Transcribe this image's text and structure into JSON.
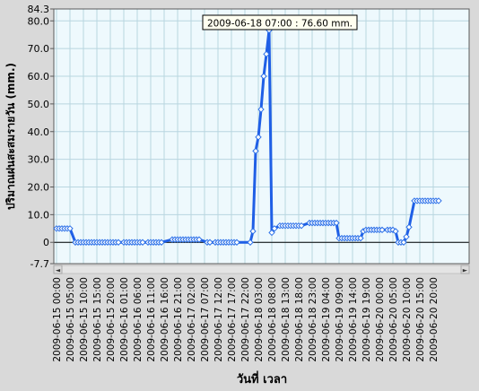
{
  "colors": {
    "background": "#d9d9d9",
    "plot_background": "#eef9fd",
    "grid": "#b8d6e0",
    "line": "#1f5fe6",
    "marker_fill": "#ffffff",
    "marker_stroke": "#2a6fe8",
    "zero_line": "#000000",
    "tooltip_bg": "#fffff0",
    "scrollbar": "#e4e4e4"
  },
  "tooltip": {
    "text": "2009-06-18 07:00 : 76.60 mm."
  },
  "scrollbar": {
    "left_arrow": "◄",
    "right_arrow": "►"
  },
  "chart_data": {
    "type": "line",
    "title": "",
    "xlabel": "วันที่ เวลา",
    "ylabel": "ปริมาณฝนสะสมรายวัน  (mm.)",
    "ylim": [
      -7.7,
      84.3
    ],
    "yticks": [
      -7.7,
      0,
      10.0,
      20.0,
      30.0,
      40.0,
      50.0,
      60.0,
      70.0,
      80.0,
      84.3
    ],
    "ytick_labels": [
      "-7.7",
      "0",
      "10.0",
      "20.0",
      "30.0",
      "40.0",
      "50.0",
      "60.0",
      "70.0",
      "80.0",
      "84.3"
    ],
    "grid": true,
    "x_range": [
      "2009-06-15 00:00",
      "2009-06-20 22:00"
    ],
    "xtick_labels": [
      "2009-06-15 00:00",
      "2009-06-15 05:00",
      "2009-06-15 10:00",
      "2009-06-15 15:00",
      "2009-06-15 20:00",
      "2009-06-16 01:00",
      "2009-06-16 06:00",
      "2009-06-16 11:00",
      "2009-06-16 16:00",
      "2009-06-16 21:00",
      "2009-06-17 02:00",
      "2009-06-17 07:00",
      "2009-06-17 12:00",
      "2009-06-17 17:00",
      "2009-06-17 22:00",
      "2009-06-18 03:00",
      "2009-06-18 08:00",
      "2009-06-18 13:00",
      "2009-06-18 18:00",
      "2009-06-18 23:00",
      "2009-06-19 04:00",
      "2009-06-19 09:00",
      "2009-06-19 14:00",
      "2009-06-19 19:00",
      "2009-06-20 00:00",
      "2009-06-20 05:00",
      "2009-06-20 10:00",
      "2009-06-20 15:00",
      "2009-06-20 20:00"
    ],
    "series": [
      {
        "name": "",
        "points": [
          [
            "2009-06-15 00:00",
            5.0
          ],
          [
            "2009-06-15 01:00",
            5.0
          ],
          [
            "2009-06-15 02:00",
            5.0
          ],
          [
            "2009-06-15 03:00",
            5.0
          ],
          [
            "2009-06-15 04:00",
            5.0
          ],
          [
            "2009-06-15 05:00",
            5.0
          ],
          [
            "2009-06-15 07:00",
            0
          ],
          [
            "2009-06-15 08:00",
            0
          ],
          [
            "2009-06-15 09:00",
            0
          ],
          [
            "2009-06-15 10:00",
            0
          ],
          [
            "2009-06-15 11:00",
            0
          ],
          [
            "2009-06-15 12:00",
            0
          ],
          [
            "2009-06-15 13:00",
            0
          ],
          [
            "2009-06-15 14:00",
            0
          ],
          [
            "2009-06-15 15:00",
            0
          ],
          [
            "2009-06-15 16:00",
            0
          ],
          [
            "2009-06-15 17:00",
            0
          ],
          [
            "2009-06-15 18:00",
            0
          ],
          [
            "2009-06-15 19:00",
            0
          ],
          [
            "2009-06-15 20:00",
            0
          ],
          [
            "2009-06-15 21:00",
            0
          ],
          [
            "2009-06-15 22:00",
            0
          ],
          [
            "2009-06-15 23:00",
            0
          ],
          [
            "2009-06-16 01:00",
            0
          ],
          [
            "2009-06-16 02:00",
            0
          ],
          [
            "2009-06-16 03:00",
            0
          ],
          [
            "2009-06-16 04:00",
            0
          ],
          [
            "2009-06-16 05:00",
            0
          ],
          [
            "2009-06-16 06:00",
            0
          ],
          [
            "2009-06-16 07:00",
            0
          ],
          [
            "2009-06-16 08:00",
            0
          ],
          [
            "2009-06-16 10:00",
            0
          ],
          [
            "2009-06-16 11:00",
            0
          ],
          [
            "2009-06-16 12:00",
            0
          ],
          [
            "2009-06-16 13:00",
            0
          ],
          [
            "2009-06-16 14:00",
            0
          ],
          [
            "2009-06-16 15:00",
            0
          ],
          [
            "2009-06-16 19:00",
            1.0
          ],
          [
            "2009-06-16 20:00",
            1.0
          ],
          [
            "2009-06-16 21:00",
            1.0
          ],
          [
            "2009-06-16 22:00",
            1.0
          ],
          [
            "2009-06-16 23:00",
            1.0
          ],
          [
            "2009-06-17 00:00",
            1.0
          ],
          [
            "2009-06-17 01:00",
            1.0
          ],
          [
            "2009-06-17 02:00",
            1.0
          ],
          [
            "2009-06-17 03:00",
            1.0
          ],
          [
            "2009-06-17 04:00",
            1.0
          ],
          [
            "2009-06-17 05:00",
            1.0
          ],
          [
            "2009-06-17 08:00",
            0
          ],
          [
            "2009-06-17 09:00",
            0
          ],
          [
            "2009-06-17 11:00",
            0
          ],
          [
            "2009-06-17 12:00",
            0
          ],
          [
            "2009-06-17 13:00",
            0
          ],
          [
            "2009-06-17 14:00",
            0
          ],
          [
            "2009-06-17 15:00",
            0
          ],
          [
            "2009-06-17 16:00",
            0
          ],
          [
            "2009-06-17 17:00",
            0
          ],
          [
            "2009-06-17 18:00",
            0
          ],
          [
            "2009-06-17 19:00",
            0
          ],
          [
            "2009-06-18 00:00",
            0
          ],
          [
            "2009-06-18 01:00",
            4.0
          ],
          [
            "2009-06-18 02:00",
            33.0
          ],
          [
            "2009-06-18 03:00",
            38.0
          ],
          [
            "2009-06-18 04:00",
            48.0
          ],
          [
            "2009-06-18 05:00",
            60.0
          ],
          [
            "2009-06-18 06:00",
            68.0
          ],
          [
            "2009-06-18 07:00",
            76.6
          ],
          [
            "2009-06-18 08:00",
            3.5
          ],
          [
            "2009-06-18 09:00",
            5.0
          ],
          [
            "2009-06-18 11:00",
            6.0
          ],
          [
            "2009-06-18 12:00",
            6.0
          ],
          [
            "2009-06-18 13:00",
            6.0
          ],
          [
            "2009-06-18 14:00",
            6.0
          ],
          [
            "2009-06-18 15:00",
            6.0
          ],
          [
            "2009-06-18 16:00",
            6.0
          ],
          [
            "2009-06-18 17:00",
            6.0
          ],
          [
            "2009-06-18 18:00",
            6.0
          ],
          [
            "2009-06-18 19:00",
            6.0
          ],
          [
            "2009-06-18 22:00",
            7.0
          ],
          [
            "2009-06-18 23:00",
            7.0
          ],
          [
            "2009-06-19 00:00",
            7.0
          ],
          [
            "2009-06-19 01:00",
            7.0
          ],
          [
            "2009-06-19 02:00",
            7.0
          ],
          [
            "2009-06-19 03:00",
            7.0
          ],
          [
            "2009-06-19 04:00",
            7.0
          ],
          [
            "2009-06-19 05:00",
            7.0
          ],
          [
            "2009-06-19 06:00",
            7.0
          ],
          [
            "2009-06-19 07:00",
            7.0
          ],
          [
            "2009-06-19 08:00",
            7.0
          ],
          [
            "2009-06-19 09:00",
            1.5
          ],
          [
            "2009-06-19 10:00",
            1.5
          ],
          [
            "2009-06-19 11:00",
            1.5
          ],
          [
            "2009-06-19 12:00",
            1.5
          ],
          [
            "2009-06-19 13:00",
            1.5
          ],
          [
            "2009-06-19 14:00",
            1.5
          ],
          [
            "2009-06-19 15:00",
            1.5
          ],
          [
            "2009-06-19 16:00",
            1.5
          ],
          [
            "2009-06-19 17:00",
            1.5
          ],
          [
            "2009-06-19 18:00",
            4.0
          ],
          [
            "2009-06-19 19:00",
            4.5
          ],
          [
            "2009-06-19 20:00",
            4.5
          ],
          [
            "2009-06-19 21:00",
            4.5
          ],
          [
            "2009-06-19 22:00",
            4.5
          ],
          [
            "2009-06-19 23:00",
            4.5
          ],
          [
            "2009-06-20 00:00",
            4.5
          ],
          [
            "2009-06-20 01:00",
            4.5
          ],
          [
            "2009-06-20 03:00",
            4.5
          ],
          [
            "2009-06-20 04:00",
            4.5
          ],
          [
            "2009-06-20 05:00",
            4.5
          ],
          [
            "2009-06-20 06:00",
            4.0
          ],
          [
            "2009-06-20 07:00",
            0
          ],
          [
            "2009-06-20 08:00",
            0
          ],
          [
            "2009-06-20 09:00",
            0
          ],
          [
            "2009-06-20 10:00",
            2.0
          ],
          [
            "2009-06-20 11:00",
            5.5
          ],
          [
            "2009-06-20 13:00",
            15.0
          ],
          [
            "2009-06-20 14:00",
            15.0
          ],
          [
            "2009-06-20 15:00",
            15.0
          ],
          [
            "2009-06-20 16:00",
            15.0
          ],
          [
            "2009-06-20 17:00",
            15.0
          ],
          [
            "2009-06-20 18:00",
            15.0
          ],
          [
            "2009-06-20 19:00",
            15.0
          ],
          [
            "2009-06-20 20:00",
            15.0
          ],
          [
            "2009-06-20 21:00",
            15.0
          ],
          [
            "2009-06-20 22:00",
            15.0
          ]
        ]
      }
    ]
  }
}
